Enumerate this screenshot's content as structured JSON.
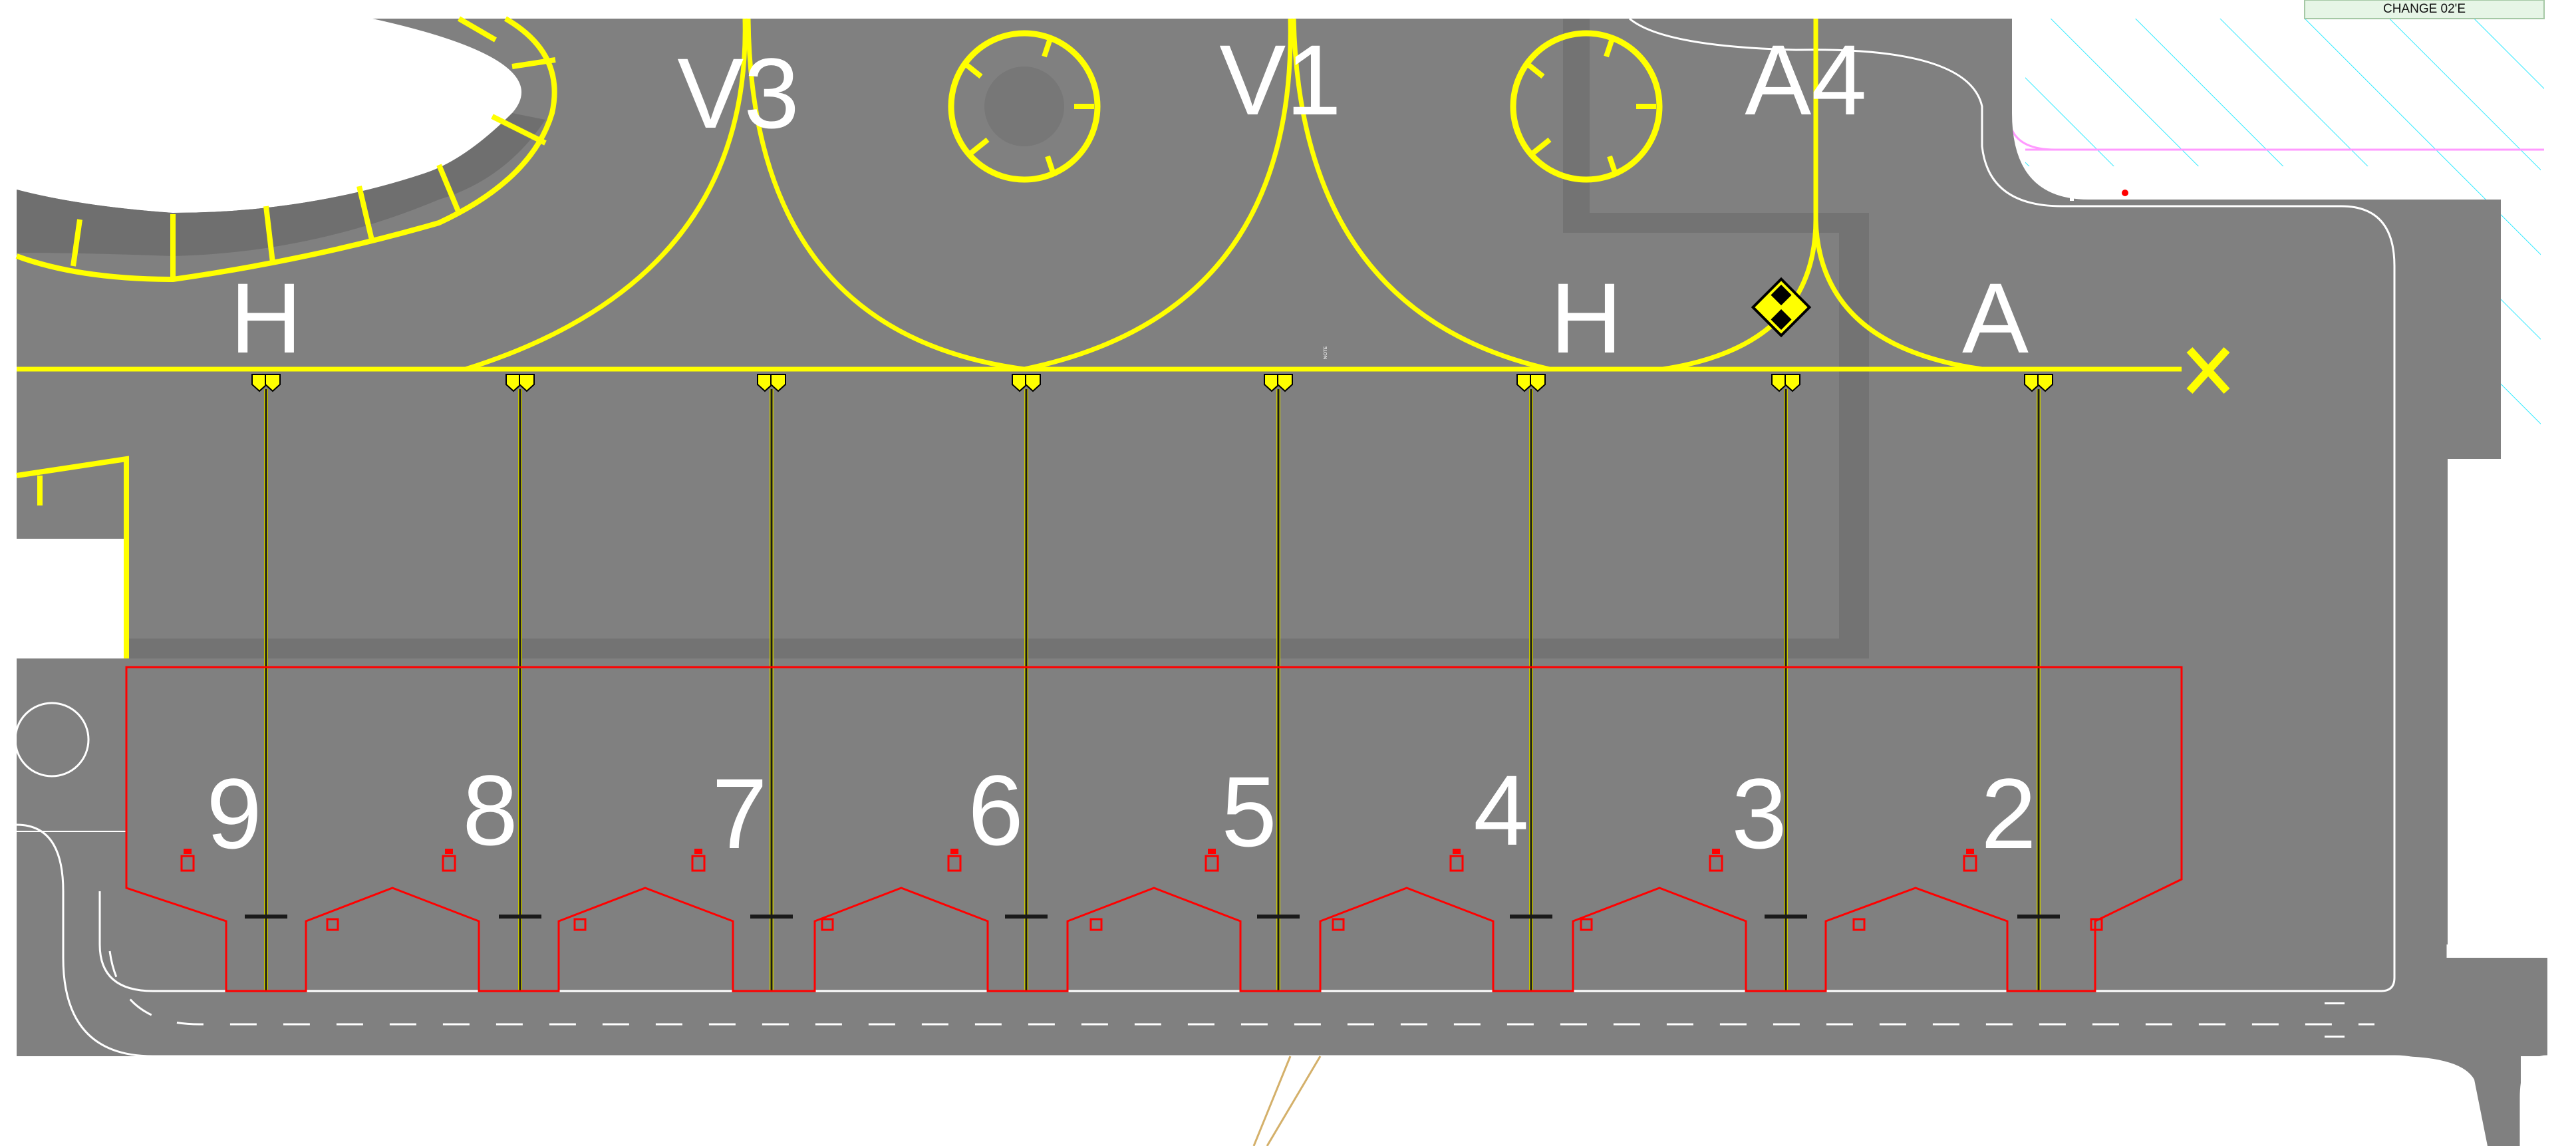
{
  "title_tag": "CHANGE 02'E",
  "colors": {
    "background": "#ffffff",
    "apron": "#808080",
    "apron_dark": "#737373",
    "taxi_line": "#ffff00",
    "stand_line": "#1a1a1a",
    "stand_line_edge": "#c8c800",
    "boundary": "#ff0000",
    "hatch": "#00ffff",
    "white_edge": "#ffffff"
  },
  "taxiway_labels": [
    {
      "id": "v3",
      "text": "V3"
    },
    {
      "id": "v1",
      "text": "V1"
    },
    {
      "id": "a4",
      "text": "A4"
    },
    {
      "id": "h-west",
      "text": "H"
    },
    {
      "id": "h-east",
      "text": "H"
    },
    {
      "id": "a",
      "text": "A"
    }
  ],
  "stands": [
    {
      "number": "9"
    },
    {
      "number": "8"
    },
    {
      "number": "7"
    },
    {
      "number": "6"
    },
    {
      "number": "5"
    },
    {
      "number": "4"
    },
    {
      "number": "3"
    },
    {
      "number": "2"
    }
  ],
  "end_marker": {
    "icon": "cross-icon"
  },
  "holding_sign": {
    "icon": "holding-position-sign-icon"
  },
  "small_notes": {
    "vertical_note": "NOTE"
  }
}
